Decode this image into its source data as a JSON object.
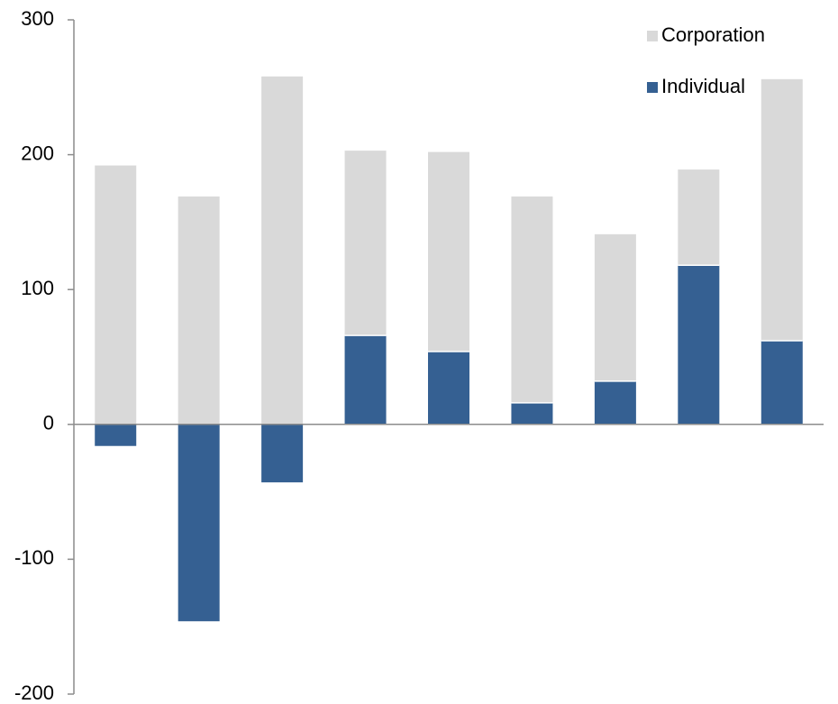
{
  "chart_data": {
    "type": "bar",
    "stacked": true,
    "categories": [
      "",
      "",
      "",
      "",
      "",
      "",
      "",
      "",
      ""
    ],
    "series": [
      {
        "name": "Individual",
        "color": "#356092",
        "values": [
          -16,
          -146,
          -43,
          66,
          54,
          16,
          32,
          118,
          62
        ]
      },
      {
        "name": "Corporation",
        "color": "#d9d9d9",
        "values": [
          192,
          169,
          258,
          137,
          148,
          153,
          109,
          71,
          194
        ]
      }
    ],
    "title": "",
    "xlabel": "",
    "ylabel": "",
    "ylim": [
      -200,
      300
    ],
    "yticks": [
      -200,
      -100,
      0,
      100,
      200,
      300
    ],
    "ytick_labels": [
      "-200",
      "-100",
      "0",
      "100",
      "200",
      "300"
    ],
    "grid": false,
    "legend": {
      "position": "top-right",
      "order": [
        "Corporation",
        "Individual"
      ]
    }
  }
}
